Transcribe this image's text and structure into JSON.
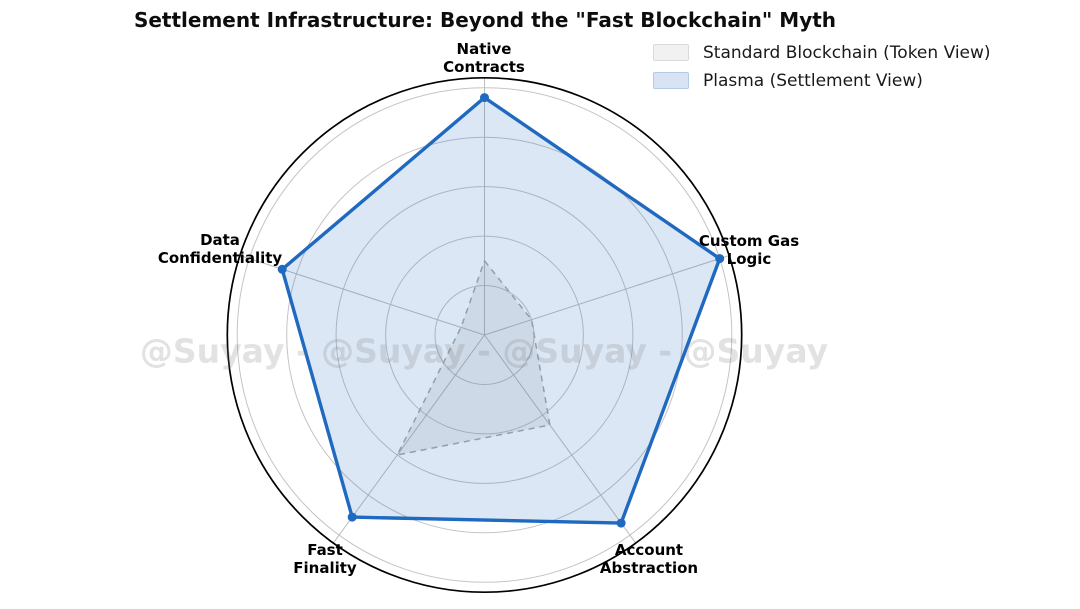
{
  "title": "Settlement Infrastructure: Beyond the \"Fast Blockchain\" Myth",
  "watermark": "@Suyay - @Suyay - @Suyay - @Suyay",
  "legend": {
    "items": [
      {
        "label": "Standard Blockchain (Token View)",
        "swatch_fill": "#f1f1f1",
        "swatch_border": "#d9d9d9"
      },
      {
        "label": "Plasma (Settlement View)",
        "swatch_fill": "#d8e3f4",
        "swatch_border": "#b4c9e8"
      }
    ]
  },
  "chart_data": {
    "type": "radar",
    "title": "Settlement Infrastructure: Beyond the \"Fast Blockchain\" Myth",
    "categories": [
      "Native Contracts",
      "Custom Gas Logic",
      "Account Abstraction",
      "Fast Finality",
      "Data Confidentiality"
    ],
    "axis_labels": [
      "Native\nContracts",
      "Custom Gas\nLogic",
      "Account\nAbstraction",
      "Fast\nFinality",
      "Data\nConfidentiality"
    ],
    "series": [
      {
        "id": "standard",
        "name": "Standard Blockchain (Token View)",
        "values": [
          3,
          2,
          4.5,
          6,
          1
        ],
        "line_color": "#a9a9a9",
        "fill_color": "#808080",
        "fill_opacity": 0.13,
        "line_width": 1.5,
        "dashed": true,
        "markers": false
      },
      {
        "id": "plasma",
        "name": "Plasma (Settlement View)",
        "values": [
          9.6,
          10,
          9.4,
          9.1,
          8.6
        ],
        "line_color": "#2069c0",
        "fill_color": "#2069c0",
        "fill_opacity": 0.16,
        "line_width": 3.4,
        "dashed": false,
        "markers": true
      }
    ],
    "r_ticks": [
      2,
      4,
      6,
      8,
      10
    ],
    "r_max_value": 10,
    "outer_ring_value": 10.4,
    "grid": true,
    "legend_position": "top-right",
    "grid_color": "#c4c4c4",
    "spoke_color": "#bdbdbd",
    "outer_ring_color": "#000000"
  }
}
